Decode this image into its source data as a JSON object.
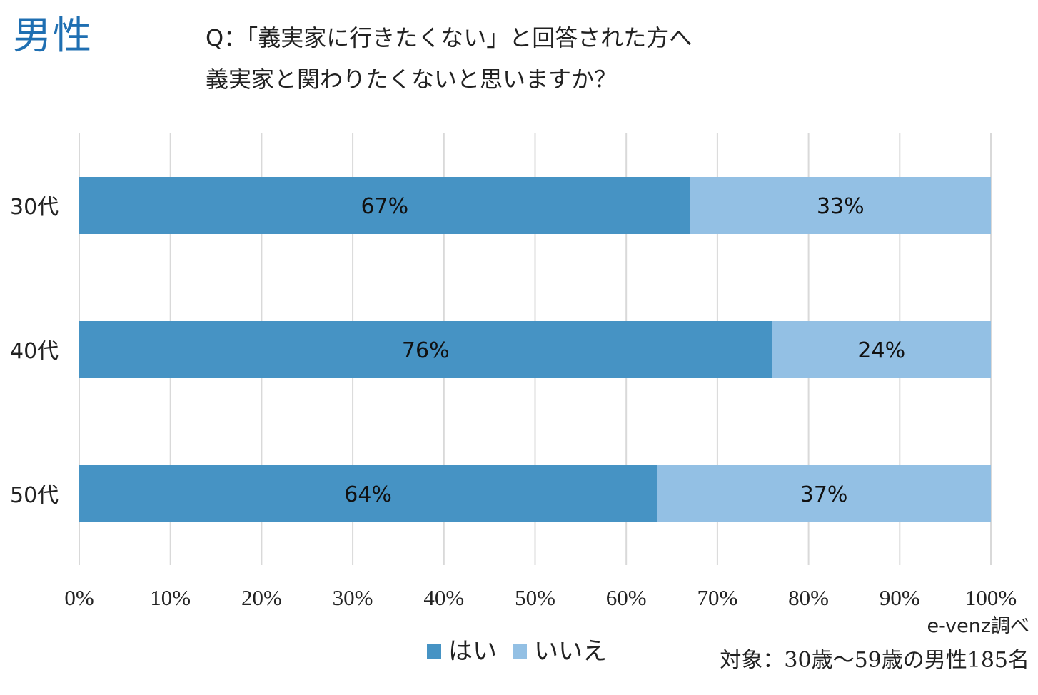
{
  "header": {
    "gender": "男性",
    "question_line1": "Q：「義実家に行きたくない」と回答された方へ",
    "question_line2": "義実家と関わりたくないと思いますか？"
  },
  "footer": {
    "source": "e-venz調べ",
    "target": "対象：30歳〜59歳の男性185名"
  },
  "colors": {
    "yes": "#4693c4",
    "no": "#93c0e4",
    "grid": "#d9d9d9"
  },
  "chart_data": {
    "type": "bar",
    "orientation": "horizontal",
    "stacked": true,
    "categories": [
      "30代",
      "40代",
      "50代"
    ],
    "series": [
      {
        "name": "はい",
        "values": [
          67,
          76,
          64
        ],
        "labels": [
          "67%",
          "76%",
          "64%"
        ]
      },
      {
        "name": "いいえ",
        "values": [
          33,
          24,
          37
        ],
        "labels": [
          "33%",
          "24%",
          "37%"
        ]
      }
    ],
    "xlim": [
      0,
      100
    ],
    "xticks": [
      "0%",
      "10%",
      "20%",
      "30%",
      "40%",
      "50%",
      "60%",
      "70%",
      "80%",
      "90%",
      "100%"
    ],
    "grid": true,
    "legend_position": "bottom"
  }
}
